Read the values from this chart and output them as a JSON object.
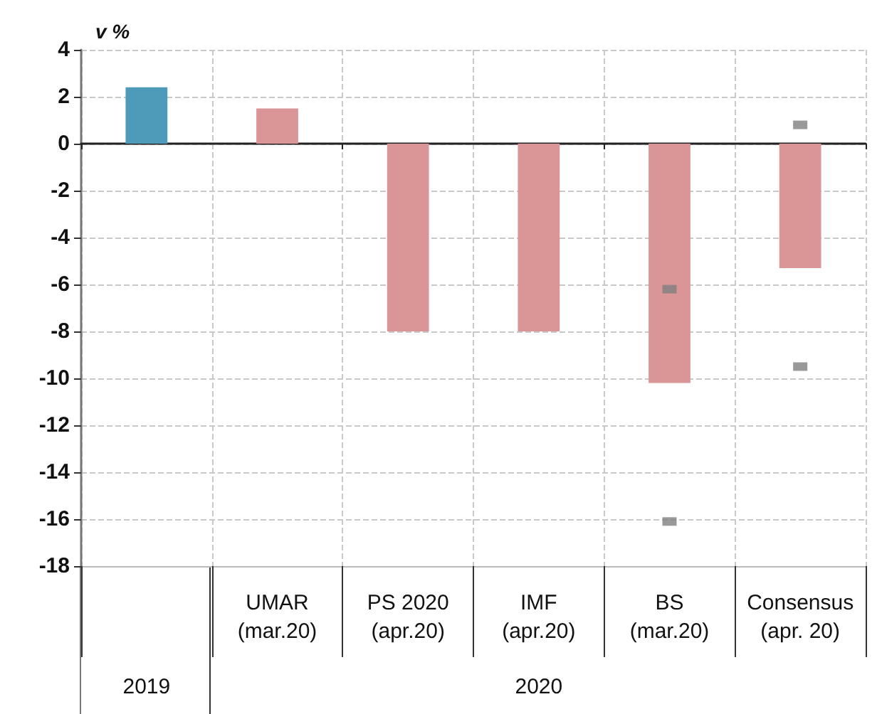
{
  "chart_data": {
    "type": "bar",
    "ylabel": "v %",
    "categories": [
      null,
      "UMAR (mar.20)",
      "PS 2020 (apr.20)",
      "IMF (apr.20)",
      "BS (mar.20)",
      "Consensus (apr. 20)"
    ],
    "series": [
      {
        "colors": [
          "#4e9ab9",
          "#da9696",
          "#da9696",
          "#da9696",
          "#da9696",
          "#da9696"
        ],
        "values": [
          2.4,
          1.5,
          -8,
          -8,
          -10.2,
          -5.3
        ]
      },
      {
        "type": "scatter",
        "color": "#808080",
        "x": [
          "BS (mar.20)",
          "Consensus (apr. 20)"
        ],
        "values": [
          -6.2,
          0.8
        ]
      },
      {
        "type": "scatter",
        "color": "#808080",
        "x": [
          "BS (mar.20)",
          "Consensus (apr. 20)"
        ],
        "values": [
          -16.1,
          -9.5
        ]
      }
    ],
    "annotations": [
      "2019",
      "2020"
    ],
    "ylim": [
      -18,
      4
    ],
    "yticks": [
      -18,
      -16,
      -14,
      -12,
      -10,
      -8,
      -6,
      -4,
      -2,
      0,
      2,
      4
    ],
    "grid": true,
    "marker": "square"
  }
}
